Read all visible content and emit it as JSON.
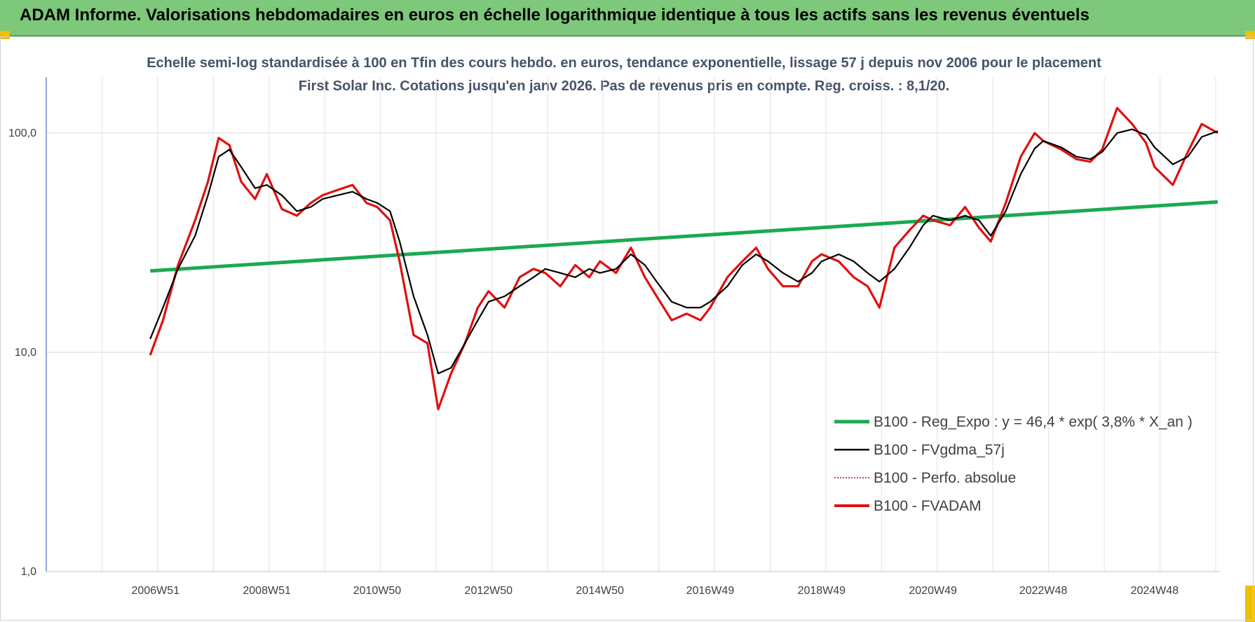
{
  "header": {
    "title": "ADAM Informe. Valorisations hebdomadaires en euros en échelle logarithmique identique à tous les actifs sans les revenus éventuels"
  },
  "chart_data": {
    "type": "line",
    "title": "Echelle semi-log standardisée à 100 en Tfin des cours hebdo. en euros, tendance exponentielle, lissage 57 j depuis nov 2006 pour le placement First Solar Inc. Cotations jusqu'en janv 2026. Pas de revenus pris en compte. Reg. croiss. : 8,1/20.",
    "y_scale": "log",
    "ylim": [
      1,
      180
    ],
    "y_ticks": [
      1,
      10,
      100
    ],
    "y_tick_labels": [
      "1,0",
      "10,0",
      "100,0"
    ],
    "x_range": [
      "2005W01",
      "2026W05"
    ],
    "x_ticks": [
      "2006W51",
      "2008W51",
      "2010W50",
      "2012W50",
      "2014W50",
      "2016W49",
      "2018W49",
      "2020W49",
      "2022W48",
      "2024W48"
    ],
    "grid": true,
    "legend_position": "bottom-right",
    "series": [
      {
        "name": "B100 - Reg_Expo : y = 46,4 * exp( 3,8% *  X_an )",
        "color": "#1aaa50",
        "style": "solid",
        "x": [
          "2006W46",
          "2026W03"
        ],
        "values": [
          23.5,
          48.5
        ]
      },
      {
        "name": "B100 - FVgdma_57j",
        "color": "#000000",
        "style": "solid",
        "x": [
          "2006W46",
          "2007W06",
          "2007W20",
          "2007W36",
          "2007W48",
          "2008W06",
          "2008W16",
          "2008W27",
          "2008W40",
          "2008W51",
          "2009W13",
          "2009W27",
          "2009W40",
          "2009W51",
          "2010W13",
          "2010W27",
          "2010W40",
          "2010W50",
          "2011W10",
          "2011W19",
          "2011W32",
          "2011W45",
          "2012W03",
          "2012W15",
          "2012W28",
          "2012W40",
          "2012W50",
          "2013W13",
          "2013W27",
          "2013W40",
          "2013W51",
          "2014W13",
          "2014W27",
          "2014W40",
          "2014W50",
          "2015W13",
          "2015W27",
          "2015W40",
          "2015W51",
          "2016W13",
          "2016W27",
          "2016W40",
          "2016W49",
          "2017W13",
          "2017W27",
          "2017W40",
          "2017W51",
          "2018W13",
          "2018W27",
          "2018W40",
          "2018W49",
          "2019W13",
          "2019W27",
          "2019W40",
          "2019W51",
          "2020W13",
          "2020W27",
          "2020W40",
          "2020W49",
          "2021W13",
          "2021W27",
          "2021W40",
          "2021W51",
          "2022W13",
          "2022W27",
          "2022W40",
          "2022W48",
          "2023W13",
          "2023W27",
          "2023W40",
          "2023W51",
          "2024W13",
          "2024W27",
          "2024W40",
          "2024W48",
          "2025W13",
          "2025W27",
          "2025W40",
          "2026W03"
        ],
        "values": [
          11.5,
          16,
          24,
          34,
          52,
          78,
          84,
          70,
          56,
          58,
          52,
          44,
          46,
          50,
          52,
          54,
          50,
          48,
          44,
          32,
          18,
          12,
          8,
          8.5,
          11,
          14,
          17,
          18,
          20,
          22,
          24,
          23,
          22,
          24,
          23,
          24,
          28,
          25,
          21,
          17,
          16,
          16,
          17,
          20,
          25,
          28,
          26,
          23,
          21,
          23,
          26,
          28,
          26,
          23,
          21,
          24,
          30,
          38,
          42,
          40,
          42,
          40,
          34,
          44,
          65,
          85,
          92,
          86,
          78,
          76,
          82,
          100,
          104,
          98,
          86,
          72,
          78,
          96,
          102
        ]
      },
      {
        "name": "B100 - Perfo. absolue",
        "color": "#c00000",
        "style": "dotted",
        "x": [],
        "values": []
      },
      {
        "name": "B100 - FVADAM",
        "color": "#e01010",
        "style": "solid",
        "x": [
          "2006W46",
          "2007W06",
          "2007W20",
          "2007W36",
          "2007W48",
          "2008W06",
          "2008W16",
          "2008W27",
          "2008W40",
          "2008W51",
          "2009W13",
          "2009W27",
          "2009W40",
          "2009W51",
          "2010W13",
          "2010W27",
          "2010W40",
          "2010W50",
          "2011W10",
          "2011W19",
          "2011W32",
          "2011W45",
          "2012W03",
          "2012W15",
          "2012W28",
          "2012W40",
          "2012W50",
          "2013W13",
          "2013W27",
          "2013W40",
          "2013W51",
          "2014W13",
          "2014W27",
          "2014W40",
          "2014W50",
          "2015W13",
          "2015W27",
          "2015W40",
          "2015W51",
          "2016W13",
          "2016W27",
          "2016W40",
          "2016W49",
          "2017W13",
          "2017W27",
          "2017W40",
          "2017W51",
          "2018W13",
          "2018W27",
          "2018W40",
          "2018W49",
          "2019W13",
          "2019W27",
          "2019W40",
          "2019W51",
          "2020W13",
          "2020W27",
          "2020W40",
          "2020W49",
          "2021W13",
          "2021W27",
          "2021W40",
          "2021W51",
          "2022W13",
          "2022W27",
          "2022W40",
          "2022W48",
          "2023W13",
          "2023W27",
          "2023W40",
          "2023W51",
          "2024W13",
          "2024W27",
          "2024W40",
          "2024W48",
          "2025W13",
          "2025W27",
          "2025W40",
          "2026W03"
        ],
        "values": [
          9.7,
          14,
          25,
          40,
          60,
          95,
          88,
          60,
          50,
          65,
          45,
          42,
          48,
          52,
          55,
          58,
          48,
          46,
          40,
          26,
          12,
          11,
          5.5,
          8,
          11,
          16,
          19,
          16,
          22,
          24,
          23,
          20,
          25,
          22,
          26,
          23,
          30,
          22,
          18,
          14,
          15,
          14,
          16,
          22,
          26,
          30,
          24,
          20,
          20,
          26,
          28,
          26,
          22,
          20,
          16,
          30,
          36,
          42,
          40,
          38,
          46,
          37,
          32,
          48,
          78,
          100,
          92,
          84,
          76,
          74,
          84,
          130,
          110,
          90,
          70,
          58,
          82,
          110,
          100
        ]
      }
    ]
  }
}
